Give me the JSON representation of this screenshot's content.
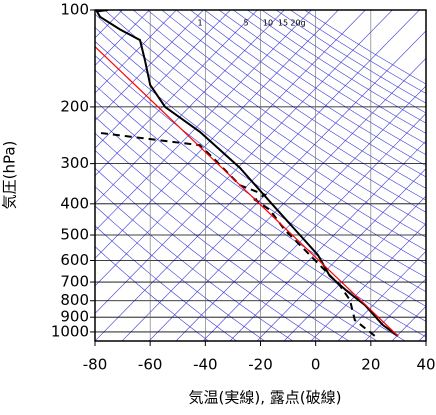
{
  "chart_data": {
    "type": "line",
    "x_label": "気温(実線), 露点(破線)",
    "y_label": "気圧(hPa)",
    "xlim": [
      -80,
      40
    ],
    "xticks": [
      -80,
      -60,
      -40,
      -20,
      0,
      20,
      40
    ],
    "ylim": [
      100,
      1067
    ],
    "yticks": [
      100,
      200,
      300,
      400,
      500,
      600,
      700,
      800,
      900,
      1000
    ],
    "log_y": true,
    "grid": true,
    "mixing_ratio_labels": [
      "1",
      "5",
      "10",
      "15",
      "20g"
    ],
    "series": [
      {
        "color": "#000000",
        "dash": false,
        "x": [
          29.8,
          24.3,
          17.8,
          11.7,
          5.1,
          0.8,
          -5.7,
          -15.9,
          -27.5,
          -42,
          -54.6,
          -60,
          -61.9,
          -63.7,
          -70.9,
          -78.2,
          -79.3,
          -75.3
        ],
        "values": [
          1029,
          951,
          824,
          751,
          670,
          577,
          500,
          400,
          309,
          239,
          200,
          171,
          143,
          124,
          115,
          105,
          101,
          100
        ]
      },
      {
        "color": "#000000",
        "dash": true,
        "x": [
          21.4,
          14.2,
          12.4,
          8.8,
          1.5,
          -5.7,
          -11.2,
          -16.6,
          -22,
          -18.4,
          -27.5,
          -36.5,
          -42,
          -78
        ],
        "values": [
          1029,
          918,
          795,
          718,
          620,
          537,
          482,
          418,
          389,
          375,
          350,
          292,
          263,
          241
        ]
      },
      {
        "color": "#ff0000",
        "dash": false,
        "x": [
          29.8,
          -80
        ],
        "values": [
          1029,
          130
        ]
      }
    ]
  }
}
